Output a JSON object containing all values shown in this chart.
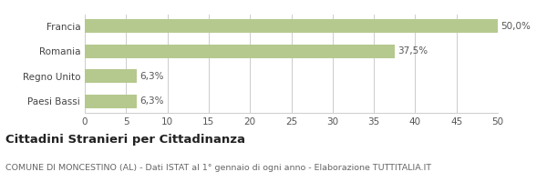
{
  "categories": [
    "Paesi Bassi",
    "Regno Unito",
    "Romania",
    "Francia"
  ],
  "values": [
    6.3,
    6.3,
    37.5,
    50.0
  ],
  "labels": [
    "6,3%",
    "6,3%",
    "37,5%",
    "50,0%"
  ],
  "bar_color": "#b5c98e",
  "xlim": [
    0,
    50
  ],
  "xticks": [
    0,
    5,
    10,
    15,
    20,
    25,
    30,
    35,
    40,
    45,
    50
  ],
  "title_bold": "Cittadini Stranieri per Cittadinanza",
  "subtitle": "COMUNE DI MONCESTINO (AL) - Dati ISTAT al 1° gennaio di ogni anno - Elaborazione TUTTITALIA.IT",
  "background_color": "#ffffff",
  "grid_color": "#cccccc",
  "bar_height": 0.55,
  "label_fontsize": 7.5,
  "tick_fontsize": 7.5,
  "ytick_fontsize": 7.5,
  "title_fontsize": 9.5,
  "subtitle_fontsize": 6.8
}
